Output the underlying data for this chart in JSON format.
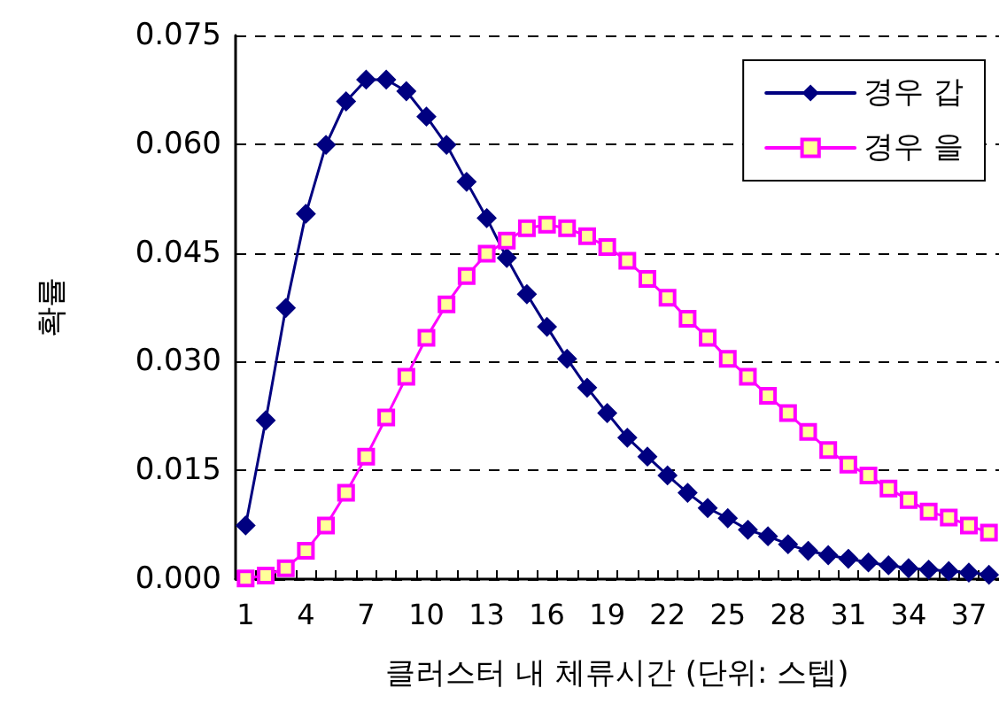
{
  "chart_data": {
    "type": "line",
    "xlabel": "클러스터 내 체류시간 (단위: 스텝)",
    "ylabel": "확률",
    "categories": [
      "1",
      null,
      null,
      "4",
      null,
      null,
      "7",
      null,
      null,
      "10",
      null,
      null,
      "13",
      null,
      null,
      "16",
      null,
      null,
      "19",
      null,
      null,
      "22",
      null,
      null,
      "25",
      null,
      null,
      "28",
      null,
      null,
      "31",
      null,
      null,
      "34",
      null,
      null,
      "37",
      null
    ],
    "series": [
      {
        "name": "경우 갑",
        "color": "#000080",
        "marker": "diamond",
        "values": [
          0.0074,
          0.0219,
          0.0374,
          0.0504,
          0.0599,
          0.0659,
          0.0689,
          0.0689,
          0.0673,
          0.0638,
          0.0599,
          0.0548,
          0.0498,
          0.0443,
          0.0393,
          0.0348,
          0.0304,
          0.0264,
          0.0229,
          0.0195,
          0.0169,
          0.0143,
          0.0119,
          0.0098,
          0.0084,
          0.0068,
          0.0059,
          0.0048,
          0.0039,
          0.0033,
          0.0028,
          0.0023,
          0.0019,
          0.0015,
          0.0013,
          0.0011,
          0.0009,
          0.0006
        ]
      },
      {
        "name": "경우 을",
        "color": "#ff00ff",
        "marker": "square",
        "values": [
          0.0001,
          0.0005,
          0.0015,
          0.0039,
          0.0074,
          0.0119,
          0.0169,
          0.0223,
          0.0279,
          0.0333,
          0.0379,
          0.0418,
          0.0449,
          0.0467,
          0.0484,
          0.0489,
          0.0484,
          0.0473,
          0.0458,
          0.0439,
          0.0414,
          0.0388,
          0.0359,
          0.0333,
          0.0304,
          0.0279,
          0.0253,
          0.0229,
          0.0203,
          0.0178,
          0.0158,
          0.0143,
          0.0125,
          0.0109,
          0.0093,
          0.0085,
          0.0074,
          0.0064
        ]
      }
    ],
    "ylim": [
      0,
      0.075
    ],
    "yticks": [
      {
        "value": 0,
        "label": "0.000"
      },
      {
        "value": 0.015,
        "label": "0.015"
      },
      {
        "value": 0.03,
        "label": "0.030"
      },
      {
        "value": 0.045,
        "label": "0.045"
      },
      {
        "value": 0.06,
        "label": "0.060"
      },
      {
        "value": 0.075,
        "label": "0.075"
      }
    ],
    "grid": "y",
    "legend": "top right",
    "line_style": "solid"
  }
}
